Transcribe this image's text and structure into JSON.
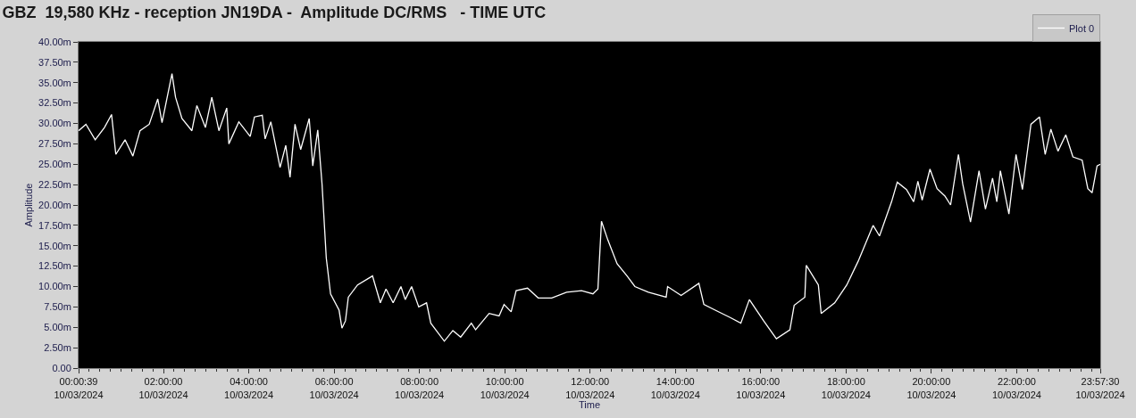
{
  "chart_data": {
    "type": "line",
    "title": "GBZ  19,580 KHz - reception JN19DA -  Amplitude DC/RMS   - TIME UTC",
    "xlabel": "Time",
    "ylabel": "Amplitude",
    "x": [
      "2024-03-10T00:00:39",
      "2024-03-10T00:11",
      "2024-03-10T00:24",
      "2024-03-10T00:37",
      "2024-03-10T00:47",
      "2024-03-10T00:53",
      "2024-03-10T01:06",
      "2024-03-10T01:17",
      "2024-03-10T01:27",
      "2024-03-10T01:40",
      "2024-03-10T01:52",
      "2024-03-10T01:58",
      "2024-03-10T02:12",
      "2024-03-10T02:17",
      "2024-03-10T02:26",
      "2024-03-10T02:40",
      "2024-03-10T02:47",
      "2024-03-10T02:59",
      "2024-03-10T03:08",
      "2024-03-10T03:18",
      "2024-03-10T03:29",
      "2024-03-10T03:32",
      "2024-03-10T03:46",
      "2024-03-10T04:02",
      "2024-03-10T04:08",
      "2024-03-10T04:19",
      "2024-03-10T04:23",
      "2024-03-10T04:31",
      "2024-03-10T04:44",
      "2024-03-10T04:52",
      "2024-03-10T04:58",
      "2024-03-10T05:05",
      "2024-03-10T05:13",
      "2024-03-10T05:25",
      "2024-03-10T05:30",
      "2024-03-10T05:37",
      "2024-03-10T05:43",
      "2024-03-10T05:49",
      "2024-03-10T05:55",
      "2024-03-10T06:07",
      "2024-03-10T06:11",
      "2024-03-10T06:16",
      "2024-03-10T06:20",
      "2024-03-10T06:33",
      "2024-03-10T06:54",
      "2024-03-10T07:05",
      "2024-03-10T07:13",
      "2024-03-10T07:23",
      "2024-03-10T07:34",
      "2024-03-10T07:40",
      "2024-03-10T07:49",
      "2024-03-10T07:59",
      "2024-03-10T08:10",
      "2024-03-10T08:16",
      "2024-03-10T08:35",
      "2024-03-10T08:47",
      "2024-03-10T08:58",
      "2024-03-10T09:13",
      "2024-03-10T09:19",
      "2024-03-10T09:38",
      "2024-03-10T09:52",
      "2024-03-10T09:59",
      "2024-03-10T10:09",
      "2024-03-10T10:16",
      "2024-03-10T10:32",
      "2024-03-10T10:47",
      "2024-03-10T11:06",
      "2024-03-10T11:27",
      "2024-03-10T11:48",
      "2024-03-10T12:04",
      "2024-03-10T12:11",
      "2024-03-10T12:16",
      "2024-03-10T12:25",
      "2024-03-10T12:38",
      "2024-03-10T12:52",
      "2024-03-10T13:03",
      "2024-03-10T13:22",
      "2024-03-10T13:47",
      "2024-03-10T13:49",
      "2024-03-10T14:08",
      "2024-03-10T14:33",
      "2024-03-10T14:40",
      "2024-03-10T14:56",
      "2024-03-10T15:17",
      "2024-03-10T15:32",
      "2024-03-10T15:44",
      "2024-03-10T16:04",
      "2024-03-10T16:22",
      "2024-03-10T16:41",
      "2024-03-10T16:47",
      "2024-03-10T17:02",
      "2024-03-10T17:04",
      "2024-03-10T17:21",
      "2024-03-10T17:25",
      "2024-03-10T17:44",
      "2024-03-10T18:01",
      "2024-03-10T18:17",
      "2024-03-10T18:38",
      "2024-03-10T18:47",
      "2024-03-10T19:04",
      "2024-03-10T19:12",
      "2024-03-10T19:25",
      "2024-03-10T19:35",
      "2024-03-10T19:41",
      "2024-03-10T19:47",
      "2024-03-10T19:58",
      "2024-03-10T20:08",
      "2024-03-10T20:19",
      "2024-03-10T20:27",
      "2024-03-10T20:38",
      "2024-03-10T20:44",
      "2024-03-10T20:55",
      "2024-03-10T21:07",
      "2024-03-10T21:16",
      "2024-03-10T21:26",
      "2024-03-10T21:32",
      "2024-03-10T21:37",
      "2024-03-10T21:49",
      "2024-03-10T21:59",
      "2024-03-10T22:08",
      "2024-03-10T22:20",
      "2024-03-10T22:32",
      "2024-03-10T22:40",
      "2024-03-10T22:48",
      "2024-03-10T22:58",
      "2024-03-10T23:09",
      "2024-03-10T23:19",
      "2024-03-10T23:32",
      "2024-03-10T23:40",
      "2024-03-10T23:46",
      "2024-03-10T23:53",
      "2024-03-10T23:57:30"
    ],
    "series": [
      {
        "name": "Plot 0",
        "color": "#ffffff",
        "values": [
          29.1,
          29.9,
          28.0,
          29.5,
          31.1,
          26.2,
          28.0,
          26.0,
          29.1,
          29.9,
          33.0,
          30.1,
          36.1,
          33.2,
          30.6,
          29.1,
          32.2,
          29.5,
          33.2,
          29.1,
          31.9,
          27.5,
          30.2,
          28.4,
          30.8,
          31.0,
          28.1,
          30.2,
          24.6,
          27.3,
          23.4,
          29.9,
          26.8,
          30.6,
          24.8,
          29.2,
          22.6,
          13.5,
          9.1,
          7.1,
          4.9,
          5.8,
          8.7,
          10.2,
          11.3,
          8.0,
          9.7,
          8.0,
          10.0,
          8.4,
          10.0,
          7.5,
          8.0,
          5.5,
          3.3,
          4.6,
          3.8,
          5.5,
          4.7,
          6.7,
          6.4,
          7.8,
          6.9,
          9.5,
          9.8,
          8.6,
          8.6,
          9.3,
          9.5,
          9.1,
          9.7,
          18.0,
          15.7,
          12.8,
          11.3,
          10.0,
          9.3,
          8.7,
          10.0,
          8.9,
          10.4,
          7.8,
          7.1,
          6.2,
          5.5,
          8.4,
          5.8,
          3.6,
          4.7,
          7.7,
          8.7,
          12.6,
          10.2,
          6.7,
          8.0,
          10.2,
          13.1,
          17.5,
          16.2,
          20.4,
          22.8,
          21.9,
          20.4,
          22.9,
          20.6,
          24.4,
          22.0,
          21.1,
          20.0,
          26.2,
          22.6,
          17.9,
          24.2,
          19.5,
          23.3,
          20.4,
          24.2,
          18.9,
          26.2,
          21.9,
          29.9,
          30.8,
          26.2,
          29.3,
          26.6,
          28.6,
          25.9,
          25.5,
          22.0,
          21.5,
          24.8,
          25.0
        ]
      }
    ],
    "xlim": [
      "2024-03-10T00:00:39",
      "2024-03-10T23:57:30"
    ],
    "xticks": [
      {
        "value": "2024-03-10T00:00:39",
        "label": "00:00:39\n10/03/2024"
      },
      {
        "value": "2024-03-10T02:00",
        "label": "02:00:00\n10/03/2024"
      },
      {
        "value": "2024-03-10T04:00",
        "label": "04:00:00\n10/03/2024"
      },
      {
        "value": "2024-03-10T06:00",
        "label": "06:00:00\n10/03/2024"
      },
      {
        "value": "2024-03-10T08:00",
        "label": "08:00:00\n10/03/2024"
      },
      {
        "value": "2024-03-10T10:00",
        "label": "10:00:00\n10/03/2024"
      },
      {
        "value": "2024-03-10T12:00",
        "label": "12:00:00\n10/03/2024"
      },
      {
        "value": "2024-03-10T14:00",
        "label": "14:00:00\n10/03/2024"
      },
      {
        "value": "2024-03-10T16:00",
        "label": "16:00:00\n10/03/2024"
      },
      {
        "value": "2024-03-10T18:00",
        "label": "18:00:00\n10/03/2024"
      },
      {
        "value": "2024-03-10T20:00",
        "label": "20:00:00\n10/03/2024"
      },
      {
        "value": "2024-03-10T22:00",
        "label": "22:00:00\n10/03/2024"
      },
      {
        "value": "2024-03-10T23:57:30",
        "label": "23:57:30\n10/03/2024"
      }
    ],
    "ylim": [
      0,
      40
    ],
    "yticks": [
      {
        "value": 0,
        "label": "0.00"
      },
      {
        "value": 2.5,
        "label": "2.50m"
      },
      {
        "value": 5,
        "label": "5.00m"
      },
      {
        "value": 7.5,
        "label": "7.50m"
      },
      {
        "value": 10,
        "label": "10.00m"
      },
      {
        "value": 12.5,
        "label": "12.50m"
      },
      {
        "value": 15,
        "label": "15.00m"
      },
      {
        "value": 17.5,
        "label": "17.50m"
      },
      {
        "value": 20,
        "label": "20.00m"
      },
      {
        "value": 22.5,
        "label": "22.50m"
      },
      {
        "value": 25,
        "label": "25.00m"
      },
      {
        "value": 27.5,
        "label": "27.50m"
      },
      {
        "value": 30,
        "label": "30.00m"
      },
      {
        "value": 32.5,
        "label": "32.50m"
      },
      {
        "value": 35,
        "label": "35.00m"
      },
      {
        "value": 37.5,
        "label": "37.50m"
      },
      {
        "value": 40,
        "label": "40.00m"
      }
    ],
    "grid": false,
    "legend": "top right",
    "marker": "none",
    "line_style": "solid"
  }
}
